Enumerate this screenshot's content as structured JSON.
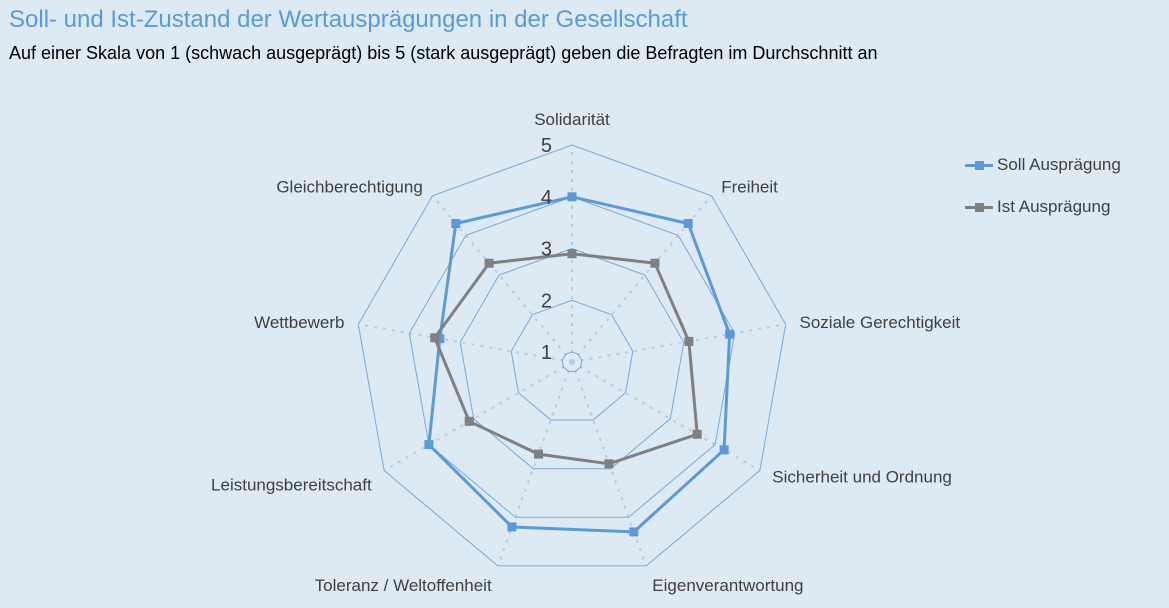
{
  "title": "Soll- und Ist-Zustand der Wertausprägungen in der Gesellschaft",
  "subtitle": "Auf einer Skala von 1 (schwach ausgeprägt) bis 5 (stark ausgeprägt) geben die Befragten im Durchschnitt an",
  "chart_data": {
    "type": "radar",
    "categories": [
      "Solidarität",
      "Freiheit",
      "Soziale Gerechtigkeit",
      "Sicherheit und Ordnung",
      "Eigenverantwortung",
      "Toleranz / Weltoffenheit",
      "Leistungsbereitschaft",
      "Wettbewerb",
      "Gleichberechtigung"
    ],
    "series": [
      {
        "name": "Soll Ausprägung",
        "color": "#5b9bd5",
        "marker": "square",
        "values": [
          4.0,
          4.3,
          3.9,
          4.2,
          4.3,
          4.2,
          4.0,
          3.4,
          4.3
        ]
      },
      {
        "name": "Ist Ausprägung",
        "color": "#808080",
        "marker": "square",
        "values": [
          2.9,
          3.3,
          3.1,
          3.6,
          2.9,
          2.7,
          3.1,
          3.5,
          3.3
        ]
      }
    ],
    "ticks": [
      "1",
      "2",
      "3",
      "4",
      "5"
    ],
    "range": [
      1,
      5
    ],
    "gridlines": true,
    "legend_position": "right"
  }
}
